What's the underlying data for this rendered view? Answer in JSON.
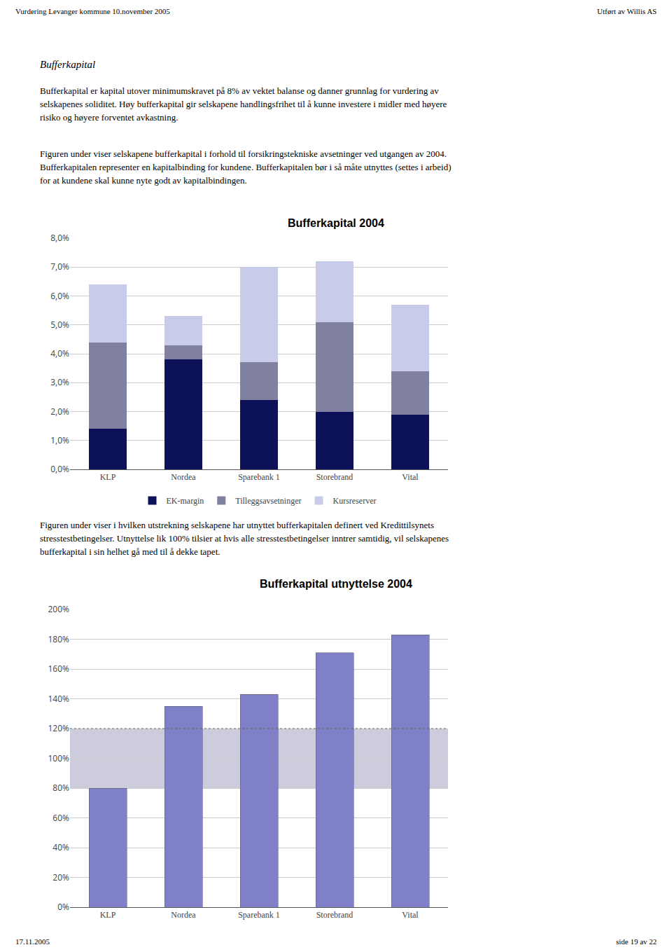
{
  "annotations": [
    "Vurdering Levanger kommune 10.november 2005",
    "Utført av Willis AS",
    "17.11.2005",
    "side 19 av 22"
  ],
  "chart_data": [
    {
      "type": "bar",
      "title": "Bufferkapital 2004",
      "annotations": [
        "Bufferkapital",
        "Bufferkapital er kapital utover minimumskravet på 8% av vektet balanse og danner grunnlag for vurdering av",
        "selskapenes soliditet. Høy bufferkapital gir selskapene handlingsfrihet til å kunne investere i midler med høyere",
        "risiko og høyere forventet avkastning.",
        "Figuren under viser selskapene bufferkapital i forhold til forsikringstekniske avsetninger ved utgangen av 2004.",
        "Bufferkapitalen representer en kapitalbinding for kundene. Bufferkapitalen bør i så måte utnyttes (settes i arbeid)",
        "for at kundene skal kunne nyte godt av kapitalbindingen."
      ],
      "categories": [
        "KLP",
        "Nordea",
        "Sparebank 1",
        "Storebrand",
        "Vital"
      ],
      "series": [
        {
          "name": "EK-margin",
          "color": "#0d1157",
          "values": [
            1.4,
            3.8,
            2.4,
            2.0,
            1.9
          ]
        },
        {
          "name": "Tilleggsavsetninger",
          "color": "#8080a0",
          "values": [
            3.0,
            0.5,
            1.3,
            3.1,
            1.5
          ]
        },
        {
          "name": "Kursreserver",
          "color": "#c8cce8",
          "values": [
            2.0,
            1.0,
            3.3,
            2.1,
            2.3
          ]
        }
      ],
      "stacked": true,
      "ylim": [
        0,
        8.0
      ],
      "yticks": [
        {
          "value": 0.0,
          "label": "0,0%"
        },
        {
          "value": 1.0,
          "label": "1,0%"
        },
        {
          "value": 2.0,
          "label": "2,0%"
        },
        {
          "value": 3.0,
          "label": "3,0%"
        },
        {
          "value": 4.0,
          "label": "4,0%"
        },
        {
          "value": 5.0,
          "label": "5,0%"
        },
        {
          "value": 6.0,
          "label": "6,0%"
        },
        {
          "value": 7.0,
          "label": "7,0%"
        },
        {
          "value": 8.0,
          "label": "8,0%"
        }
      ],
      "grid": true,
      "legend": "bottom"
    },
    {
      "type": "bar",
      "title": "Bufferkapital utnyttelse 2004",
      "annotations": [
        "Figuren under viser i hvilken utstrekning selskapene har utnyttet bufferkapitalen definert ved Kredittilsynets",
        "stresstestbetingelser. Utnyttelse lik 100% tilsier at hvis alle stresstestbetingelser inntrer samtidig, vil selskapenes",
        "bufferkapital i sin helhet gå med til å dekke tapet."
      ],
      "categories": [
        "KLP",
        "Nordea",
        "Sparebank 1",
        "Storebrand",
        "Vital"
      ],
      "values": [
        80,
        135,
        143,
        171,
        183
      ],
      "color": "#8080c8",
      "band": {
        "from": 80,
        "to": 120,
        "color": "#ccccdd"
      },
      "reference_line": 120,
      "ylim": [
        0,
        200
      ],
      "yticks": [
        {
          "value": 0,
          "label": "0%"
        },
        {
          "value": 20,
          "label": "20%"
        },
        {
          "value": 40,
          "label": "40%"
        },
        {
          "value": 60,
          "label": "60%"
        },
        {
          "value": 80,
          "label": "80%"
        },
        {
          "value": 100,
          "label": "100%"
        },
        {
          "value": 120,
          "label": "120%"
        },
        {
          "value": 140,
          "label": "140%"
        },
        {
          "value": 160,
          "label": "160%"
        },
        {
          "value": 180,
          "label": "180%"
        },
        {
          "value": 200,
          "label": "200%"
        }
      ],
      "grid": true
    }
  ]
}
